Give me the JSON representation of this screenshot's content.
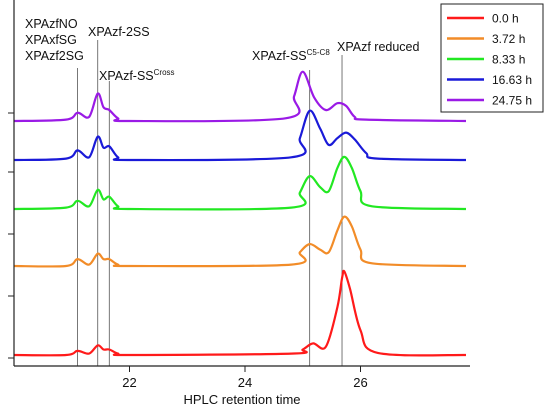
{
  "chart_data": {
    "type": "line",
    "title": "",
    "xlabel": "HPLC retention time",
    "ylabel": "",
    "xlim": [
      20.0,
      27.9
    ],
    "x_ticks": [
      22,
      24,
      26
    ],
    "grid": false,
    "legend_position": "top-right",
    "annotations": [
      {
        "text": "XPAzfNO",
        "x": 21.1
      },
      {
        "text": "XPAxfSG",
        "x": 21.1
      },
      {
        "text": "XPAzf2SG",
        "x": 21.1
      },
      {
        "text": "XPAzf-2SS",
        "x": 21.45
      },
      {
        "text": "XPAzf-SS",
        "sup": "Cross",
        "x": 21.65
      },
      {
        "text": "XPAzf-SS",
        "sup": "C5-C8",
        "x": 25.12
      },
      {
        "text": "XPAzf reduced",
        "x": 25.68
      }
    ],
    "series": [
      {
        "name": "0.0 h",
        "color": "#ff1a1a",
        "x": [
          20.0,
          20.9,
          21.1,
          21.3,
          21.45,
          21.55,
          21.65,
          21.8,
          22.0,
          24.8,
          25.0,
          25.18,
          25.4,
          25.6,
          25.68,
          25.72,
          25.82,
          26.0,
          26.3,
          27.9
        ],
        "values": [
          0.0,
          0.0,
          0.3,
          0.1,
          0.7,
          0.4,
          0.4,
          0.1,
          0.0,
          0.1,
          0.4,
          0.85,
          0.6,
          3.5,
          5.6,
          6.1,
          4.8,
          1.8,
          0.15,
          0.0
        ]
      },
      {
        "name": "3.72 h",
        "color": "#f28c28",
        "x": [
          20.0,
          20.9,
          21.1,
          21.3,
          21.45,
          21.55,
          21.65,
          21.8,
          22.0,
          24.8,
          24.95,
          25.12,
          25.3,
          25.45,
          25.6,
          25.72,
          25.85,
          26.0,
          26.2,
          27.9
        ],
        "values": [
          0.0,
          0.0,
          0.5,
          0.1,
          0.9,
          0.5,
          0.5,
          0.1,
          0.0,
          0.1,
          1.0,
          1.6,
          1.2,
          1.0,
          2.6,
          3.6,
          2.9,
          1.2,
          0.2,
          0.0
        ]
      },
      {
        "name": "8.33 h",
        "color": "#22e822",
        "x": [
          20.0,
          20.9,
          21.1,
          21.3,
          21.45,
          21.55,
          21.65,
          21.8,
          22.0,
          24.8,
          24.95,
          25.12,
          25.3,
          25.45,
          25.6,
          25.72,
          25.85,
          26.0,
          26.2,
          27.9
        ],
        "values": [
          0.0,
          0.1,
          0.6,
          0.2,
          1.4,
          0.7,
          0.9,
          0.2,
          0.0,
          0.1,
          1.2,
          2.4,
          1.6,
          1.3,
          3.0,
          3.8,
          3.0,
          1.3,
          0.2,
          0.0
        ]
      },
      {
        "name": "16.63 h",
        "color": "#1a1ad8",
        "x": [
          20.0,
          20.9,
          21.1,
          21.3,
          21.45,
          21.55,
          21.65,
          21.8,
          22.0,
          24.8,
          24.95,
          25.12,
          25.3,
          25.45,
          25.6,
          25.75,
          25.9,
          26.1,
          26.3,
          27.9
        ],
        "values": [
          0.0,
          0.1,
          0.7,
          0.2,
          1.7,
          0.9,
          1.0,
          0.2,
          0.0,
          0.2,
          1.6,
          3.6,
          2.3,
          1.1,
          1.6,
          2.0,
          1.5,
          0.5,
          0.1,
          0.0
        ]
      },
      {
        "name": "24.75 h",
        "color": "#9a1ae6",
        "x": [
          20.0,
          20.9,
          21.1,
          21.3,
          21.45,
          21.55,
          21.65,
          21.8,
          22.0,
          24.7,
          24.85,
          25.0,
          25.2,
          25.4,
          25.6,
          25.75,
          25.9,
          26.1,
          27.9
        ],
        "values": [
          0.0,
          0.1,
          0.6,
          0.3,
          2.0,
          1.0,
          0.8,
          0.2,
          0.0,
          0.2,
          1.8,
          3.6,
          1.7,
          0.8,
          1.3,
          1.1,
          0.3,
          0.1,
          0.0
        ]
      }
    ]
  }
}
